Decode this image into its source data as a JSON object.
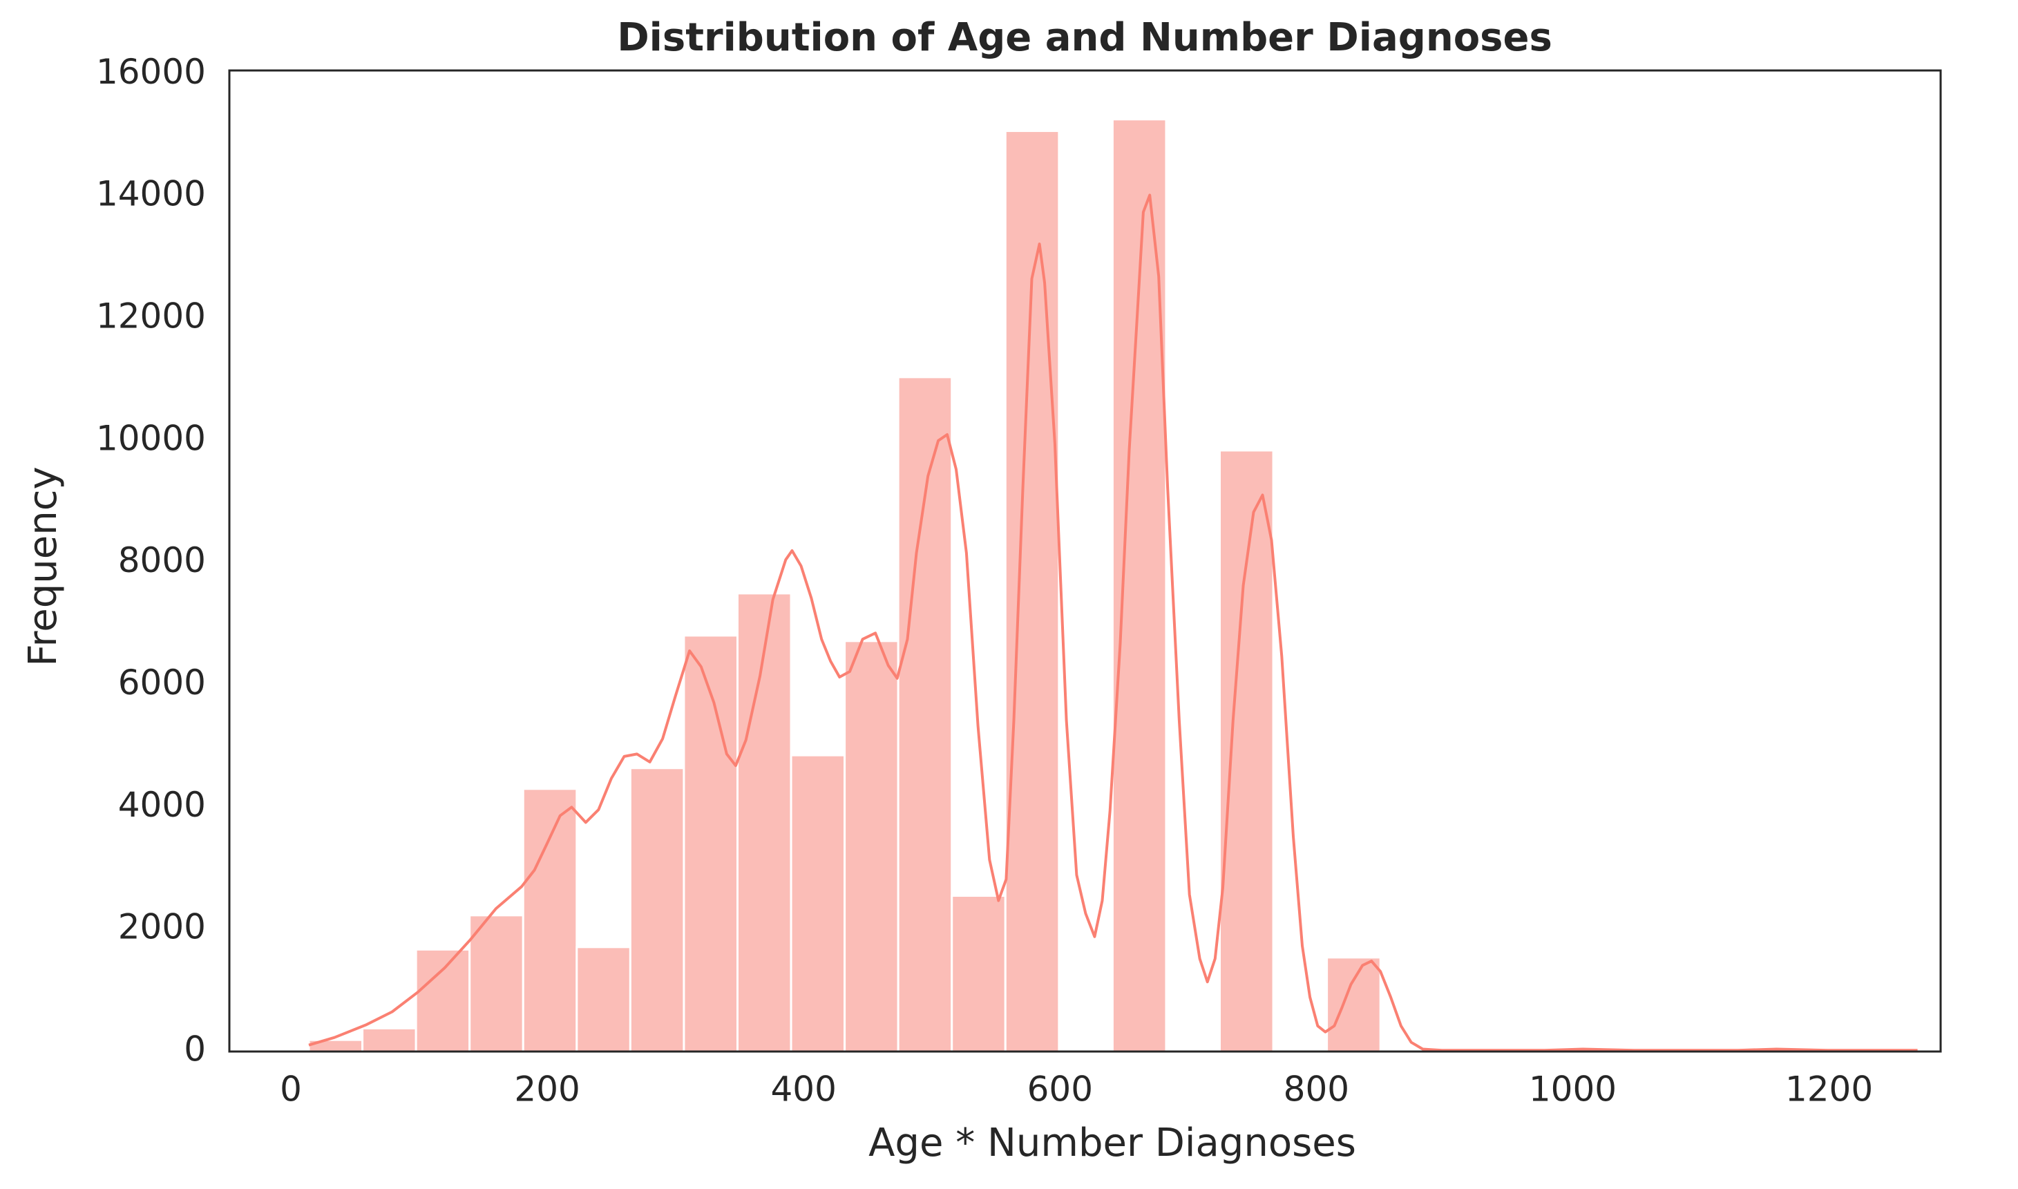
{
  "chart_data": {
    "type": "histogram",
    "title": "Distribution of Age and Number Diagnoses",
    "xlabel": "Age * Number Diagnoses",
    "ylabel": "Frequency",
    "bins": [
      14,
      55.8,
      97.6,
      139.4,
      181.2,
      223,
      264.8,
      306.6,
      348.4,
      390.2,
      432,
      473.8,
      515.6,
      557.4,
      599.2,
      641,
      682.8,
      724.6,
      766.4,
      808.2,
      850,
      891.8,
      933.6,
      975.4,
      1017.2,
      1059,
      1100.8,
      1142.6,
      1184.4,
      1226.2,
      1268
    ],
    "values": [
      190,
      380,
      1670,
      2230,
      4300,
      1710,
      4640,
      6810,
      7500,
      4850,
      6720,
      11040,
      2550,
      15070,
      0,
      15260,
      0,
      9840,
      0,
      1540,
      0,
      0,
      0,
      5,
      5,
      0,
      0,
      5,
      0,
      0
    ],
    "color": "#fbbdb7",
    "kde": {
      "color": "#fa8072",
      "x": [
        14,
        34,
        59,
        79,
        99,
        120,
        140,
        160,
        180,
        190,
        200,
        210,
        219,
        230,
        240,
        250,
        260,
        270,
        280,
        290,
        300,
        311,
        320,
        330,
        340,
        347,
        355,
        366,
        376,
        386,
        391,
        398,
        406,
        414,
        421,
        428,
        436,
        446,
        456,
        466,
        473,
        481,
        488,
        497,
        505,
        512,
        519,
        527,
        536,
        545,
        552,
        558,
        564,
        571,
        578,
        584,
        588,
        596,
        605,
        613,
        620,
        627,
        633,
        639,
        647,
        654,
        660,
        665,
        670,
        677,
        684,
        693,
        701,
        709,
        715,
        721,
        727,
        735,
        743,
        751,
        758,
        765,
        773,
        782,
        789,
        795,
        801,
        807,
        814,
        820,
        827,
        836,
        843,
        850,
        858,
        866,
        874,
        883,
        898,
        978,
        1008,
        1048,
        1129,
        1159,
        1199,
        1269
      ],
      "values": [
        105,
        230,
        440,
        650,
        970,
        1370,
        1830,
        2340,
        2700,
        2970,
        3410,
        3860,
        4000,
        3750,
        3960,
        4470,
        4830,
        4870,
        4740,
        5120,
        5820,
        6560,
        6300,
        5710,
        4870,
        4680,
        5100,
        6150,
        7400,
        8050,
        8200,
        7950,
        7420,
        6750,
        6390,
        6130,
        6220,
        6750,
        6850,
        6320,
        6110,
        6750,
        8160,
        9420,
        10000,
        10100,
        9530,
        8160,
        5330,
        3140,
        2470,
        2820,
        5420,
        9210,
        12650,
        13220,
        12580,
        9950,
        5420,
        2890,
        2260,
        1880,
        2470,
        3940,
        6680,
        9840,
        11950,
        13740,
        14020,
        12690,
        9210,
        5420,
        2570,
        1520,
        1140,
        1520,
        2680,
        5420,
        7630,
        8830,
        9110,
        8370,
        6470,
        3520,
        1730,
        890,
        420,
        320,
        420,
        720,
        1100,
        1410,
        1480,
        1310,
        890,
        420,
        150,
        40,
        20,
        20,
        40,
        20,
        20,
        40,
        20,
        20
      ]
    },
    "xlim": [
      -48,
      1287
    ],
    "ylim": [
      0,
      16060
    ],
    "xticks": [
      0,
      200,
      400,
      600,
      800,
      1000,
      1200
    ],
    "yticks": [
      0,
      2000,
      4000,
      6000,
      8000,
      10000,
      12000,
      14000,
      16000
    ]
  }
}
